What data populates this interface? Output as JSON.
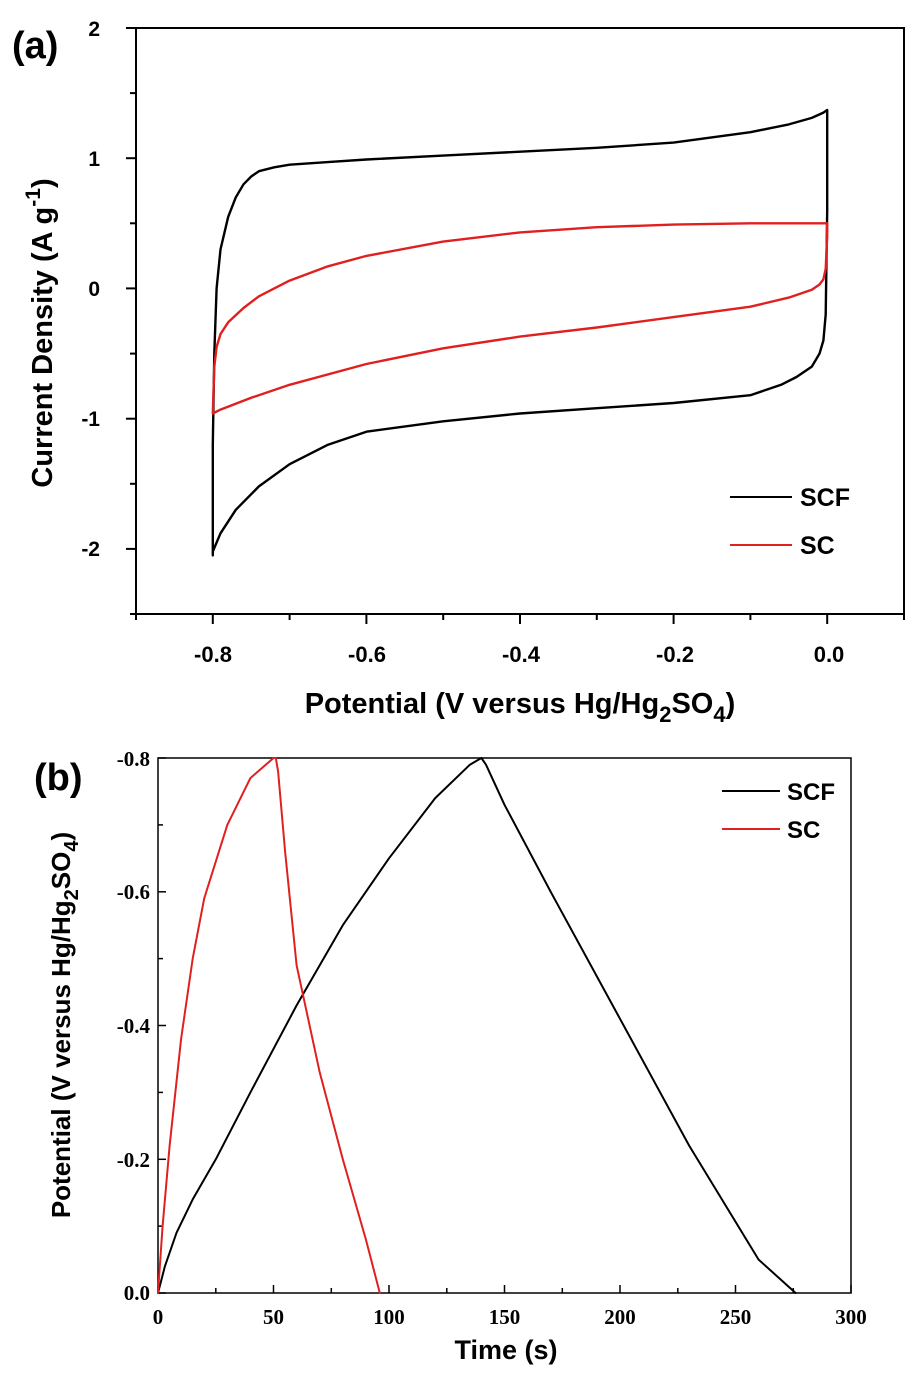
{
  "colors": {
    "SCF": "#000000",
    "SC": "#e02020"
  },
  "chart_data": [
    {
      "panel": "(a)",
      "type": "line",
      "xlabel_main": "Potential (V versus Hg/Hg",
      "xlabel_sub1": "2",
      "xlabel_mid": "SO",
      "xlabel_sub2": "4",
      "xlabel_end": ")",
      "ylabel_main": "Current Density (A g",
      "ylabel_sup": "-1",
      "ylabel_end": ")",
      "xlim": [
        -0.9,
        0.1
      ],
      "ylim": [
        -2.5,
        2
      ],
      "xticks": [
        "-0.8",
        "-0.6",
        "-0.4",
        "-0.2",
        "0.0"
      ],
      "yticks": [
        "-2",
        "-1",
        "0",
        "1",
        "2"
      ],
      "legend": [
        "SCF",
        "SC"
      ],
      "legend_position": "bottom-right",
      "series": [
        {
          "name": "SCF",
          "x": [
            -0.8,
            -0.8,
            -0.798,
            -0.795,
            -0.79,
            -0.78,
            -0.77,
            -0.76,
            -0.75,
            -0.74,
            -0.72,
            -0.7,
            -0.65,
            -0.6,
            -0.5,
            -0.4,
            -0.3,
            -0.2,
            -0.1,
            -0.05,
            -0.02,
            -0.005,
            0.0,
            0.0,
            -0.002,
            -0.005,
            -0.01,
            -0.02,
            -0.04,
            -0.06,
            -0.1,
            -0.2,
            -0.3,
            -0.4,
            -0.5,
            -0.6,
            -0.65,
            -0.7,
            -0.74,
            -0.77,
            -0.79,
            -0.8,
            -0.8
          ],
          "y": [
            -2.05,
            -1.2,
            -0.5,
            0.0,
            0.3,
            0.55,
            0.7,
            0.8,
            0.86,
            0.9,
            0.93,
            0.95,
            0.97,
            0.99,
            1.02,
            1.05,
            1.08,
            1.12,
            1.2,
            1.26,
            1.31,
            1.35,
            1.37,
            0.6,
            -0.2,
            -0.4,
            -0.5,
            -0.6,
            -0.68,
            -0.74,
            -0.82,
            -0.88,
            -0.92,
            -0.96,
            -1.02,
            -1.1,
            -1.2,
            -1.35,
            -1.52,
            -1.7,
            -1.88,
            -2.02,
            -2.05
          ]
        },
        {
          "name": "SC",
          "x": [
            -0.8,
            -0.798,
            -0.795,
            -0.79,
            -0.78,
            -0.76,
            -0.74,
            -0.7,
            -0.65,
            -0.6,
            -0.5,
            -0.4,
            -0.3,
            -0.2,
            -0.1,
            -0.05,
            0.0,
            0.0,
            -0.002,
            -0.005,
            -0.01,
            -0.02,
            -0.05,
            -0.1,
            -0.2,
            -0.3,
            -0.4,
            -0.5,
            -0.6,
            -0.7,
            -0.75,
            -0.79,
            -0.8
          ],
          "y": [
            -0.96,
            -0.6,
            -0.45,
            -0.35,
            -0.26,
            -0.15,
            -0.06,
            0.06,
            0.17,
            0.25,
            0.36,
            0.43,
            0.47,
            0.49,
            0.5,
            0.5,
            0.5,
            0.4,
            0.15,
            0.07,
            0.03,
            -0.01,
            -0.07,
            -0.14,
            -0.22,
            -0.3,
            -0.37,
            -0.46,
            -0.58,
            -0.74,
            -0.84,
            -0.93,
            -0.96
          ]
        }
      ]
    },
    {
      "panel": "(b)",
      "type": "line",
      "xlabel": "Time (s)",
      "ylabel_main": "Potential (V versus Hg/Hg",
      "ylabel_sub1": "2",
      "ylabel_mid": "SO",
      "ylabel_sub2": "4",
      "ylabel_end": ")",
      "xlim": [
        0,
        300
      ],
      "ylim": [
        0.0,
        -0.8
      ],
      "xticks": [
        "0",
        "50",
        "100",
        "150",
        "200",
        "250",
        "300"
      ],
      "yticks": [
        "0.0",
        "-0.2",
        "-0.4",
        "-0.6",
        "-0.8"
      ],
      "legend": [
        "SCF",
        "SC"
      ],
      "legend_position": "top-right",
      "series": [
        {
          "name": "SCF",
          "x": [
            0,
            3,
            8,
            15,
            25,
            40,
            60,
            80,
            100,
            120,
            135,
            140,
            142,
            150,
            170,
            200,
            230,
            260,
            276
          ],
          "y": [
            0.0,
            -0.04,
            -0.09,
            -0.14,
            -0.2,
            -0.3,
            -0.43,
            -0.55,
            -0.65,
            -0.74,
            -0.79,
            -0.8,
            -0.79,
            -0.73,
            -0.6,
            -0.41,
            -0.22,
            -0.05,
            0.0
          ]
        },
        {
          "name": "SC",
          "x": [
            0,
            2,
            5,
            10,
            15,
            20,
            30,
            40,
            50,
            51,
            52,
            55,
            60,
            70,
            80,
            90,
            96
          ],
          "y": [
            0.0,
            -0.1,
            -0.22,
            -0.38,
            -0.5,
            -0.59,
            -0.7,
            -0.77,
            -0.8,
            -0.8,
            -0.78,
            -0.66,
            -0.49,
            -0.33,
            -0.2,
            -0.08,
            0.0
          ]
        }
      ]
    }
  ]
}
